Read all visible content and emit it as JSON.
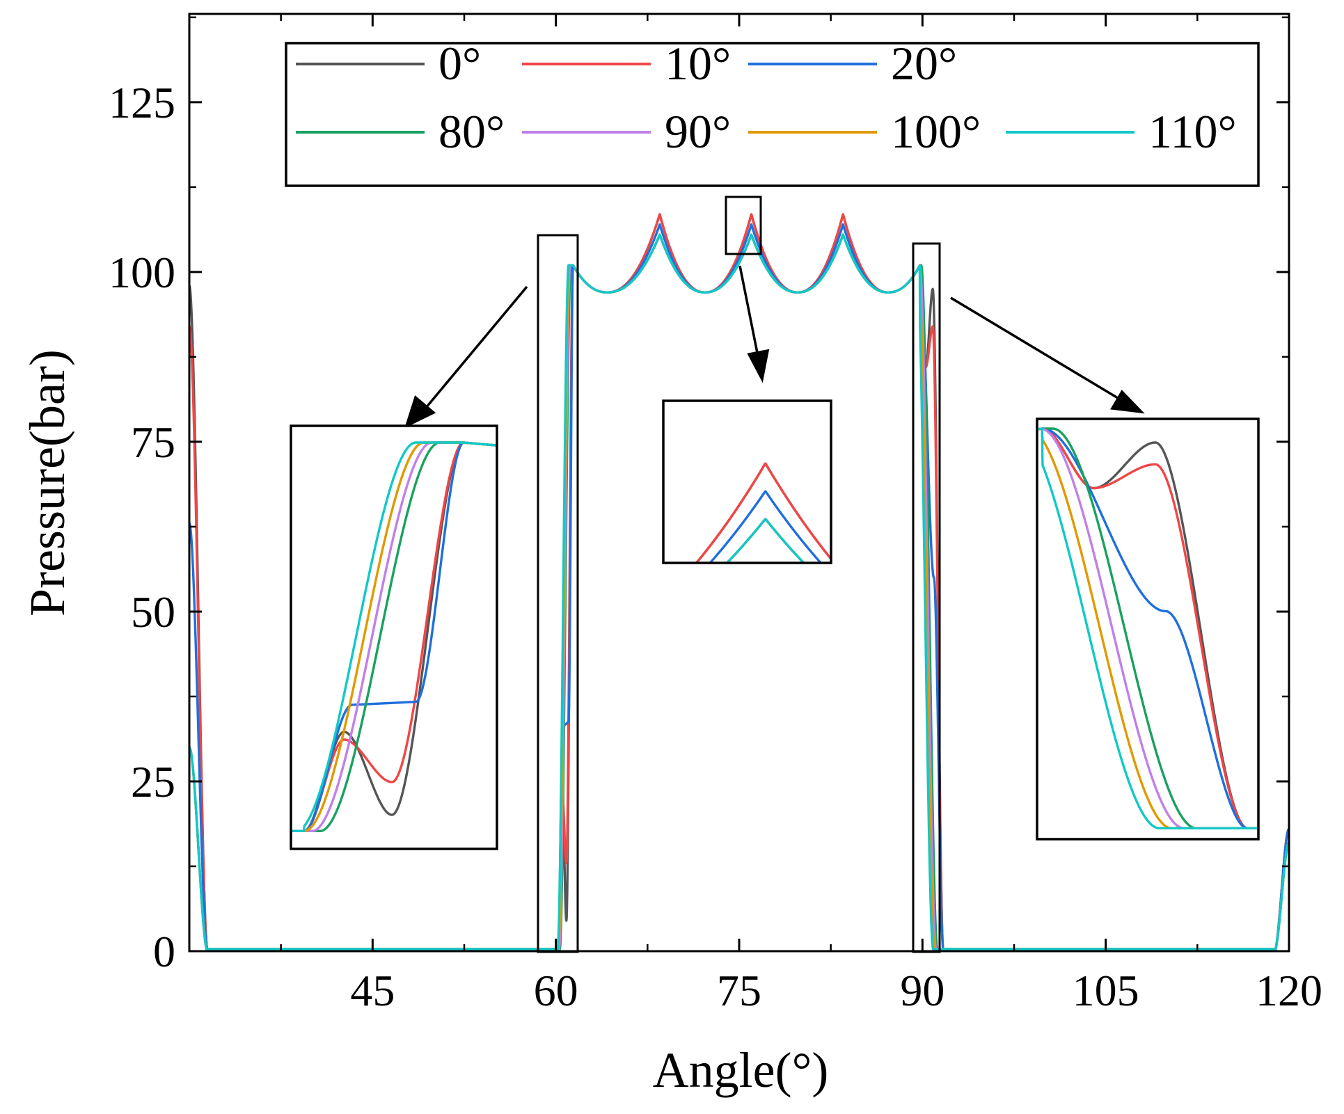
{
  "chart_data": {
    "type": "line",
    "title": "",
    "xlabel": "Angle(°)",
    "ylabel": "Pressure(bar)",
    "xlim": [
      30,
      120
    ],
    "ylim": [
      0,
      138
    ],
    "xticks": [
      45,
      60,
      75,
      90,
      105,
      120
    ],
    "yticks": [
      0,
      25,
      50,
      75,
      100,
      125
    ],
    "xtick_labels": [
      "45",
      "60",
      "75",
      "90",
      "105",
      "120"
    ],
    "ytick_labels": [
      "0",
      "25",
      "50",
      "75",
      "100",
      "125"
    ],
    "legend": {
      "placement": "top",
      "columns": 3
    },
    "series": [
      {
        "name": "0°",
        "color": "#555555",
        "drop_min": 4.5,
        "drop_shape": "dip",
        "rise_peak": 97.5,
        "peak_max": 108.5
      },
      {
        "name": "10°",
        "color": "#f04646",
        "drop_min": 13,
        "drop_shape": "dip",
        "rise_peak": 92,
        "peak_max": 108.5
      },
      {
        "name": "20°",
        "color": "#1f6fdc",
        "drop_min": 33,
        "drop_shape": "plateau",
        "rise_peak": 86,
        "peak_max": 107
      },
      {
        "name": "80°",
        "color": "#1aa060",
        "drop_min": 60,
        "drop_shape": "smooth",
        "rise_peak": 83,
        "peak_max": 105.5
      },
      {
        "name": "90°",
        "color": "#c080e8",
        "drop_min": 66,
        "drop_shape": "smooth",
        "rise_peak": 82,
        "peak_max": 105.5
      },
      {
        "name": "100°",
        "color": "#e09a00",
        "drop_min": 72,
        "drop_shape": "smooth",
        "rise_peak": 81,
        "peak_max": 105.5
      },
      {
        "name": "110°",
        "color": "#12c8c8",
        "drop_min": 76,
        "drop_shape": "smooth",
        "rise_peak": 80,
        "peak_max": 105.5
      }
    ],
    "key_points": {
      "rise_start": 60.2,
      "rise_end": 61.4,
      "plateau_peaks": [
        68.5,
        76.0,
        83.5
      ],
      "valleys": [
        64.2,
        72.2,
        79.8,
        87.2
      ],
      "valley_pressure": 97,
      "fall_start": 89.8,
      "fall_end": 91.7,
      "high_pressure": 101
    },
    "annotations": [
      {
        "label": "zoom-rise",
        "x_range": [
          59.5,
          62.5
        ],
        "y_range": [
          0,
          106
        ]
      },
      {
        "label": "zoom-peak",
        "x_range": [
          74.5,
          77.1
        ],
        "y_range": [
          103.5,
          111.5
        ]
      },
      {
        "label": "zoom-fall",
        "x_range": [
          89.4,
          91.7
        ],
        "y_range": [
          0,
          105
        ]
      }
    ]
  }
}
